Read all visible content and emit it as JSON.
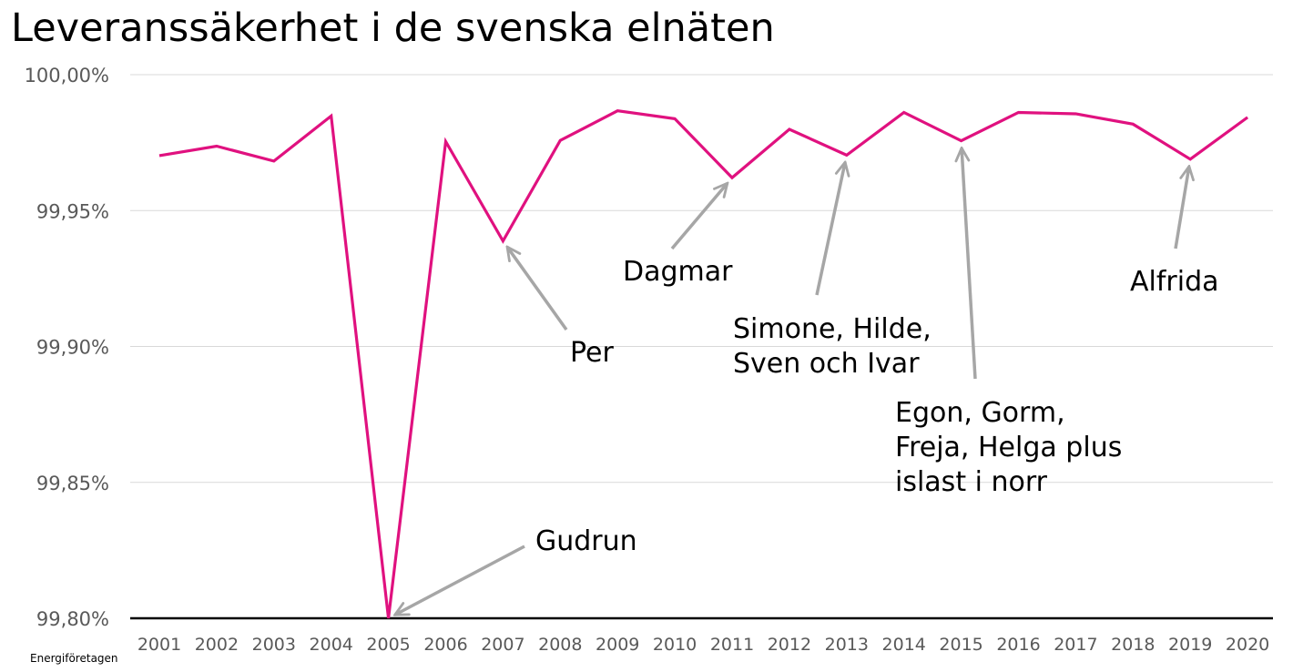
{
  "chart_data": {
    "type": "line",
    "title": "Leveranssäkerhet i de svenska elnäten",
    "source": "Energiföretagen",
    "x": [
      "2001",
      "2002",
      "2003",
      "2004",
      "2005",
      "2006",
      "2007",
      "2008",
      "2009",
      "2010",
      "2011",
      "2012",
      "2013",
      "2014",
      "2015",
      "2016",
      "2017",
      "2018",
      "2019",
      "2020"
    ],
    "series": [
      {
        "values": [
          99.9702,
          99.9737,
          99.9682,
          99.9848,
          99.8,
          99.9754,
          99.9388,
          99.9758,
          99.9867,
          99.9838,
          99.9621,
          99.9799,
          99.9704,
          99.9861,
          99.9757,
          99.9861,
          99.9856,
          99.9818,
          99.9689,
          99.9843
        ],
        "color": "#e0117f"
      }
    ],
    "ylim": [
      99.8,
      100.0
    ],
    "yticks": [
      99.8,
      99.85,
      99.9,
      99.95,
      100.0
    ],
    "ytick_labels": [
      "99,80%",
      "99,85%",
      "99,90%",
      "99,95%",
      "100,00%"
    ],
    "grid": true,
    "annotations": [
      {
        "year": "2005",
        "lines": [
          "Gudrun"
        ]
      },
      {
        "year": "2007",
        "lines": [
          "Per"
        ]
      },
      {
        "year": "2011",
        "lines": [
          "Dagmar"
        ]
      },
      {
        "year": "2013",
        "lines": [
          "Simone, Hilde,",
          "Sven och Ivar"
        ]
      },
      {
        "year": "2015",
        "lines": [
          "Egon, Gorm,",
          "Freja, Helga plus",
          "islast i norr"
        ]
      },
      {
        "year": "2019",
        "lines": [
          "Alfrida"
        ]
      }
    ],
    "colors": {
      "line": "#e0117f",
      "arrow": "#a6a6a6",
      "grid": "#d9d9d9",
      "axis": "#000000",
      "tick_text": "#595959"
    }
  }
}
